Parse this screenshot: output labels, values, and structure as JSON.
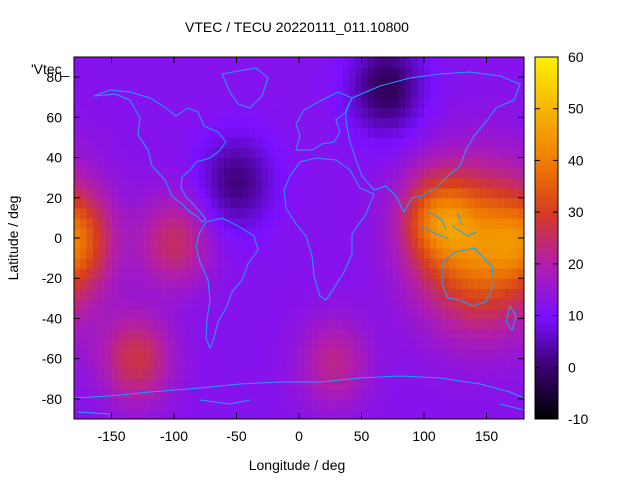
{
  "chart_data": {
    "type": "heatmap",
    "title": "VTEC / TECU 20220111_011.10800",
    "xlabel": "Longitude / deg",
    "ylabel": "Latitude / deg",
    "xlim": [
      -180,
      180
    ],
    "ylim": [
      -90,
      90
    ],
    "x_ticks": [
      -150,
      -100,
      -50,
      0,
      50,
      100,
      150
    ],
    "y_ticks": [
      -80,
      -60,
      -40,
      -20,
      0,
      20,
      40,
      60,
      80
    ],
    "colorbar": {
      "range": [
        -10,
        60
      ],
      "ticks": [
        -10,
        0,
        10,
        20,
        30,
        40,
        50,
        60
      ],
      "colors": [
        "#000000",
        "#3a006e",
        "#7a10ff",
        "#b21ea8",
        "#d63c20",
        "#ef7c00",
        "#f5b700",
        "#fff000"
      ]
    },
    "series_label": "'Vtec_",
    "background_level": 12,
    "features": [
      {
        "name": "Asia-Pacific maximum",
        "lon": 145,
        "lat": -5,
        "peak": 40
      },
      {
        "name": "Asia-Pacific extension",
        "lon": 110,
        "lat": 10,
        "peak": 30
      },
      {
        "name": "Dateline west enhancement",
        "lon": -178,
        "lat": 0,
        "peak": 26
      },
      {
        "name": "South Pacific enhancement",
        "lon": -130,
        "lat": -60,
        "peak": 27
      },
      {
        "name": "South America spot",
        "lon": -100,
        "lat": -2,
        "peak": 25
      },
      {
        "name": "Southern Africa spot",
        "lon": 28,
        "lat": -62,
        "peak": 22
      },
      {
        "name": "Northern Asia minimum",
        "lon": 70,
        "lat": 75,
        "peak": -2
      },
      {
        "name": "North Atlantic minimum",
        "lon": -50,
        "lat": 28,
        "peak": 1
      }
    ]
  }
}
